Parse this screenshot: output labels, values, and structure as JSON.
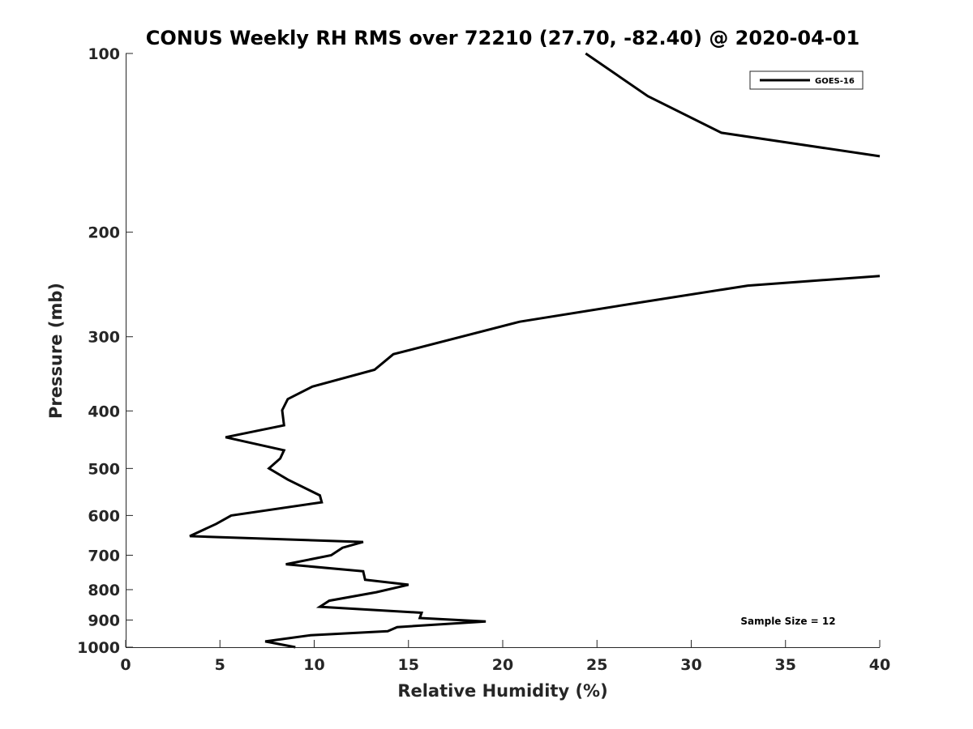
{
  "chart_data": {
    "type": "line",
    "title": "CONUS Weekly RH RMS over 72210 (27.70, -82.40) @ 2020-04-01",
    "xlabel": "Relative Humidity (%)",
    "ylabel": "Pressure (mb)",
    "xlim": [
      0,
      40
    ],
    "ylim": [
      100,
      1000
    ],
    "y_scale": "log",
    "y_reversed": true,
    "grid": false,
    "x_ticks": [
      "0",
      "5",
      "10",
      "15",
      "20",
      "25",
      "30",
      "35",
      "40"
    ],
    "y_ticks": [
      "100",
      "200",
      "300",
      "400",
      "500",
      "600",
      "700",
      "800",
      "900",
      "1000"
    ],
    "legend_position": "top-right",
    "annotation": "Sample Size = 12",
    "series": [
      {
        "name": "GOES-16",
        "color": "#000000",
        "segments": [
          [
            {
              "x": 24.4,
              "p": 100
            },
            {
              "x": 27.7,
              "p": 118
            },
            {
              "x": 31.6,
              "p": 136
            },
            {
              "x": 40.0,
              "p": 149
            }
          ],
          [
            {
              "x": 40.0,
              "p": 237
            },
            {
              "x": 33.0,
              "p": 246
            },
            {
              "x": 27.5,
              "p": 262
            },
            {
              "x": 20.9,
              "p": 283
            },
            {
              "x": 14.2,
              "p": 321
            },
            {
              "x": 13.2,
              "p": 341
            },
            {
              "x": 9.9,
              "p": 364
            },
            {
              "x": 8.6,
              "p": 382
            },
            {
              "x": 8.3,
              "p": 399
            },
            {
              "x": 8.4,
              "p": 423
            },
            {
              "x": 5.3,
              "p": 443
            },
            {
              "x": 8.4,
              "p": 466
            },
            {
              "x": 8.2,
              "p": 481
            },
            {
              "x": 7.6,
              "p": 500
            },
            {
              "x": 8.6,
              "p": 522
            },
            {
              "x": 10.3,
              "p": 555
            },
            {
              "x": 10.4,
              "p": 570
            },
            {
              "x": 5.6,
              "p": 600
            },
            {
              "x": 4.8,
              "p": 620
            },
            {
              "x": 3.4,
              "p": 650
            },
            {
              "x": 12.6,
              "p": 665
            },
            {
              "x": 11.5,
              "p": 680
            },
            {
              "x": 10.9,
              "p": 700
            },
            {
              "x": 8.5,
              "p": 725
            },
            {
              "x": 12.6,
              "p": 745
            },
            {
              "x": 12.7,
              "p": 770
            },
            {
              "x": 15.0,
              "p": 785
            },
            {
              "x": 13.3,
              "p": 808
            },
            {
              "x": 10.8,
              "p": 835
            },
            {
              "x": 10.3,
              "p": 855
            },
            {
              "x": 15.7,
              "p": 875
            },
            {
              "x": 15.6,
              "p": 893
            },
            {
              "x": 19.1,
              "p": 905
            },
            {
              "x": 14.4,
              "p": 925
            },
            {
              "x": 13.9,
              "p": 940
            },
            {
              "x": 9.8,
              "p": 955
            },
            {
              "x": 7.4,
              "p": 978
            },
            {
              "x": 9.0,
              "p": 1000
            }
          ]
        ]
      }
    ]
  }
}
